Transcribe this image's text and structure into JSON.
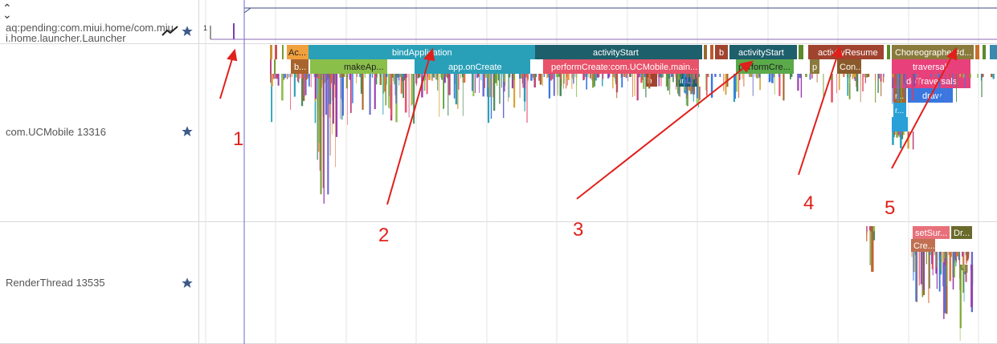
{
  "header": {
    "collapse_icon": "chevron-up-down-icon"
  },
  "tracks": [
    {
      "title_line1": "aq:pending:com.miui.home/com.miu",
      "title_line2": "i.home.launcher.Launcher",
      "icon": "trend-line-icon",
      "star": "star-icon",
      "counter_label": "1"
    },
    {
      "title": "com.UCMobile 13316",
      "star": "star-icon"
    },
    {
      "title": "RenderThread 13535",
      "star": "star-icon"
    }
  ],
  "slices": {
    "ac": "Ac...",
    "bindApplication": "bindApplication",
    "activityStart1": "activityStart",
    "b1": "b",
    "activityStart2": "activityStart",
    "activityResume": "activityResume",
    "choreographer": "Choreographer#d...",
    "b_small": "b...",
    "makeAp": "makeAp...",
    "appOnCreate": "app.onCreate",
    "performCreate": "performCreate:com.UCMobile.main...",
    "performCre": "performCre...",
    "p": "p",
    "con": "Con...",
    "traversal": "traversal",
    "b2": "b",
    "in": "in...",
    "doTraversals": "doTraversals",
    "r1": "r...",
    "draw": "draw",
    "r2": "r...",
    "setSur": "setSur...",
    "dr": "Dr...",
    "cre": "Cre..."
  },
  "annotations": [
    "1",
    "2",
    "3",
    "4",
    "5"
  ],
  "colors": {
    "accent": "#e0201b",
    "star": "#3d5a8a",
    "bind": "#2aa0b8",
    "activity": "#1d5f6b",
    "perform": "#e8526a",
    "resume": "#a0432f",
    "choreo": "#8a7a3c",
    "traversal": "#e8407a",
    "draw": "#3a78e0"
  }
}
